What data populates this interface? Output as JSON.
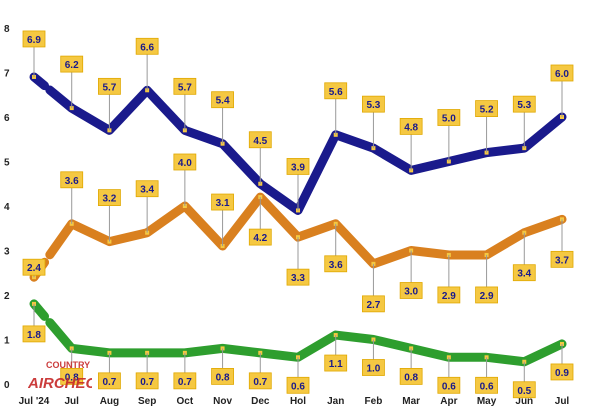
{
  "chart_data": {
    "type": "line",
    "categories": [
      "Jul '24",
      "Jul",
      "Aug",
      "Sep",
      "Oct",
      "Nov",
      "Dec",
      "Hol",
      "Jan",
      "Feb",
      "Mar",
      "Apr",
      "May",
      "Jun",
      "Jul"
    ],
    "ylim": [
      0,
      8
    ],
    "yticks": [
      "0",
      "1",
      "2",
      "3",
      "4",
      "5",
      "6",
      "7",
      "8"
    ],
    "series": [
      {
        "color": "#1a1a8c",
        "values": [
          6.9,
          6.2,
          5.7,
          6.6,
          5.7,
          5.4,
          4.5,
          3.9,
          5.6,
          5.3,
          4.8,
          5.0,
          5.2,
          5.3,
          6.0
        ],
        "labels": [
          "6.9",
          "6.2",
          "5.7",
          "6.6",
          "5.7",
          "5.4",
          "4.5",
          "3.9",
          "5.6",
          "5.3",
          "4.8",
          "5.0",
          "5.2",
          "5.3",
          "6.0"
        ]
      },
      {
        "color": "#d9801f",
        "values": [
          2.4,
          3.6,
          3.2,
          3.4,
          4.0,
          3.1,
          4.2,
          3.3,
          3.6,
          2.7,
          3.0,
          2.9,
          2.9,
          3.4,
          3.7
        ],
        "labels": [
          "2.4",
          "3.6",
          "3.2",
          "3.4",
          "4.0",
          "3.1",
          "4.2",
          "3.3",
          "3.6",
          "2.7",
          "3.0",
          "2.9",
          "2.9",
          "3.4",
          "3.7"
        ]
      },
      {
        "color": "#2e9e2e",
        "values": [
          1.8,
          0.8,
          0.7,
          0.7,
          0.7,
          0.8,
          0.7,
          0.6,
          1.1,
          1.0,
          0.8,
          0.6,
          0.6,
          0.5,
          0.9
        ],
        "labels": [
          "1.8",
          "0.8",
          "0.7",
          "0.7",
          "0.7",
          "0.8",
          "0.7",
          "0.6",
          "1.1",
          "1.0",
          "0.8",
          "0.6",
          "0.6",
          "0.5",
          "0.9"
        ]
      }
    ],
    "grid": false,
    "label_box_color": "#f5c842",
    "label_text_color": "#1a1a8c"
  },
  "watermark": {
    "line1": "COUNTRY",
    "line2": "AIRCHECK"
  }
}
